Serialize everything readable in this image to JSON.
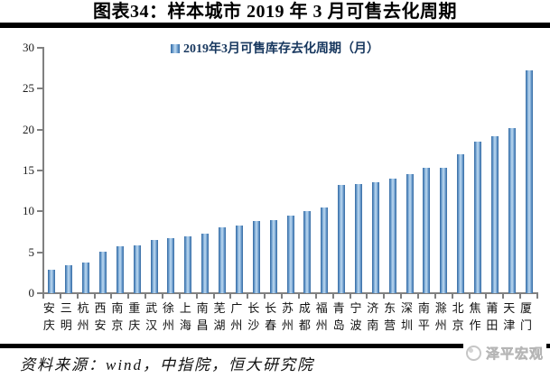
{
  "header": {
    "title": "图表34：样本城市 2019 年 3 月可售去化周期"
  },
  "legend": {
    "label": "2019年3月可售库存去化周期（月）"
  },
  "footer": {
    "source": "资料来源：wind，中指院，恒大研究院",
    "watermark": "泽平宏观"
  },
  "colors": {
    "bar_edge": "#34699f",
    "bar_center": "#a9cbe8",
    "legend_text": "#17375E",
    "axis": "#808080",
    "rule": "#000000",
    "watermark_gray": "#c3c3c3"
  },
  "chart_data": {
    "type": "bar",
    "title": "图表34：样本城市 2019 年 3 月可售去化周期",
    "legend_entries": [
      "2019年3月可售库存去化周期（月）"
    ],
    "legend_position": "top-center",
    "grid": false,
    "xlabel": "",
    "ylabel": "",
    "ylim": [
      0,
      30
    ],
    "yticks": [
      0,
      5,
      10,
      15,
      20,
      25,
      30
    ],
    "categories": [
      "安庆",
      "三明",
      "杭州",
      "西安",
      "南京",
      "重庆",
      "武汉",
      "徐州",
      "上海",
      "南昌",
      "芜湖",
      "广州",
      "长沙",
      "长春",
      "苏州",
      "成都",
      "福州",
      "青岛",
      "宁波",
      "济南",
      "东营",
      "深圳",
      "南平",
      "滁州",
      "北京",
      "焦作",
      "莆田",
      "天津",
      "厦门"
    ],
    "values": [
      2.9,
      3.4,
      3.8,
      5.1,
      5.7,
      5.8,
      6.5,
      6.7,
      7.0,
      7.3,
      8.0,
      8.3,
      8.8,
      8.9,
      9.5,
      10.0,
      10.5,
      13.2,
      13.3,
      13.6,
      14.0,
      14.6,
      15.3,
      15.3,
      17.0,
      18.5,
      19.2,
      20.2,
      27.2
    ]
  }
}
